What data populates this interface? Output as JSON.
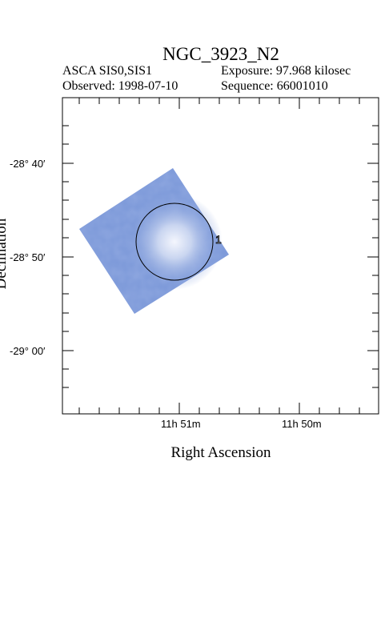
{
  "header": {
    "title": "NGC_3923_N2",
    "instrument": "ASCA SIS0,SIS1",
    "exposure": "Exposure: 97.968 kilosec",
    "observed": "Observed: 1998-07-10",
    "sequence": "Sequence: 66001010"
  },
  "axes": {
    "xlabel": "Right Ascension",
    "ylabel": "Declination",
    "yticks": [
      "-28° 40′",
      "-28° 50′",
      "-29° 00′"
    ],
    "xticks": [
      "11h 51m",
      "11h 50m"
    ]
  },
  "source": {
    "label": "1"
  },
  "colors": {
    "image_blue": "#7a97d8",
    "image_center": "#eef2fb",
    "frame": "#000000"
  }
}
